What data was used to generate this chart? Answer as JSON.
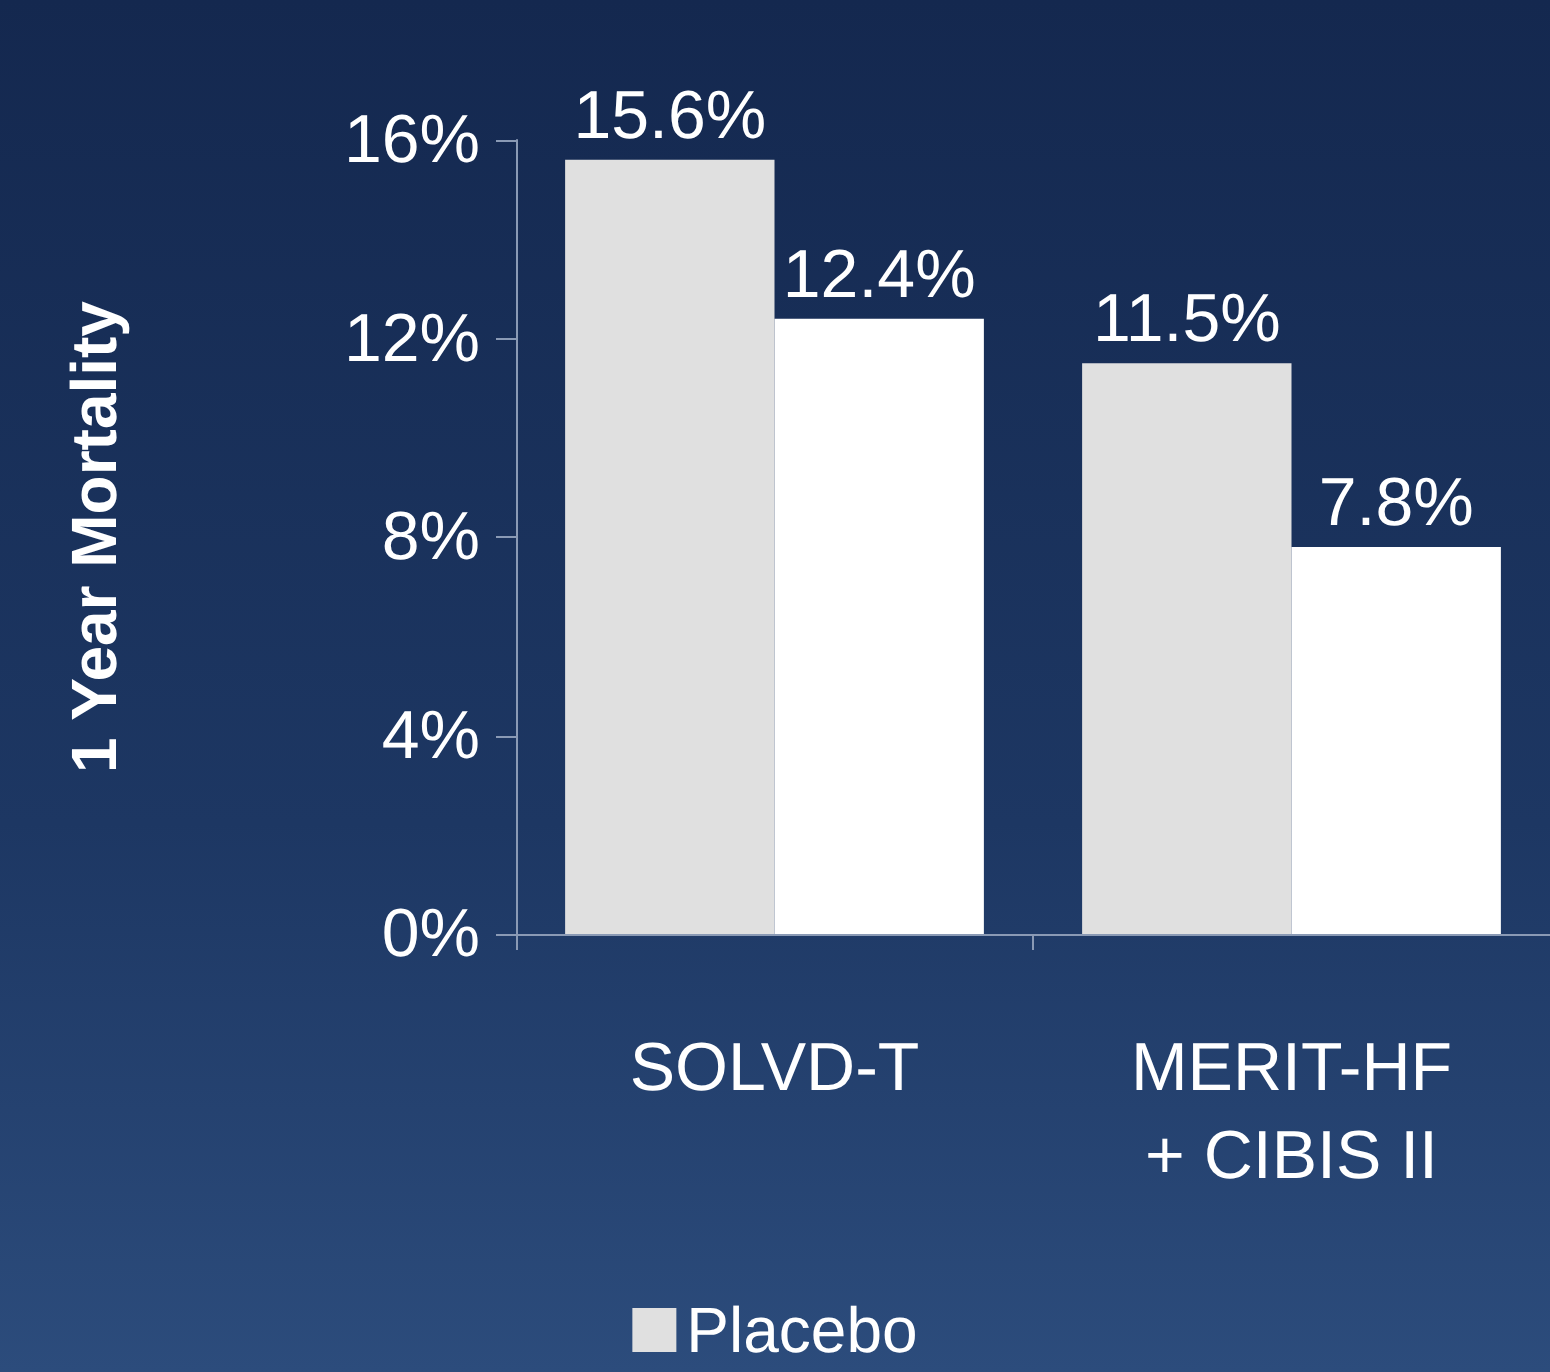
{
  "chart_data": {
    "type": "bar",
    "ylabel": "1 Year Mortality",
    "categories": [
      "SOLVD-T",
      "MERIT-HF\n+ CIBIS II"
    ],
    "series": [
      {
        "name": "Placebo",
        "color": "#e0e0e0",
        "values": [
          15.6,
          11.5
        ],
        "value_labels": [
          "15.6%",
          "11.5%"
        ]
      },
      {
        "color": "#ffffff",
        "values": [
          12.4,
          7.8
        ],
        "value_labels": [
          "12.4%",
          "7.8%"
        ]
      }
    ],
    "ylim": [
      0,
      16
    ],
    "yticks": [
      {
        "value": 0,
        "label": "0%"
      },
      {
        "value": 4,
        "label": "4%"
      },
      {
        "value": 8,
        "label": "8%"
      },
      {
        "value": 12,
        "label": "12%"
      },
      {
        "value": 16,
        "label": "16%"
      }
    ],
    "grid": false,
    "legend": "bottom"
  }
}
